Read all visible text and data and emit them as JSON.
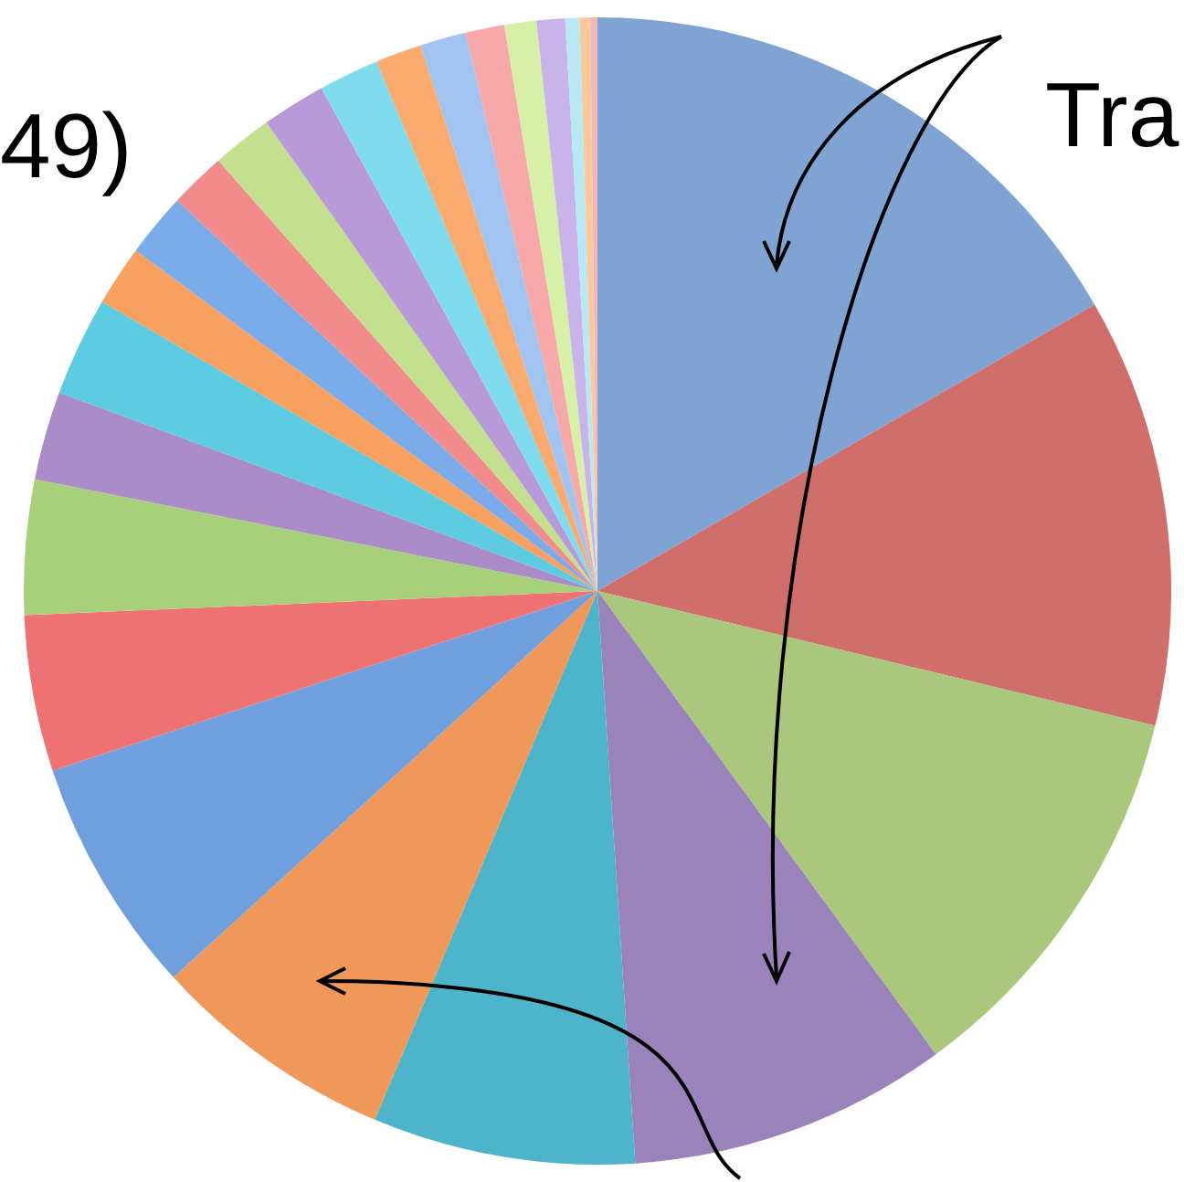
{
  "chart_data": {
    "type": "pie",
    "categories": [
      null,
      null,
      null,
      null,
      null,
      null,
      null,
      null,
      null,
      null,
      null,
      null,
      null,
      null,
      null,
      null,
      null,
      null,
      null,
      null,
      null,
      null,
      null,
      null,
      null
    ],
    "values": [
      16.7,
      12.1,
      11.2,
      9.0,
      7.4,
      6.9,
      6.7,
      4.4,
      3.8,
      2.5,
      2.8,
      1.7,
      1.8,
      1.6,
      1.7,
      1.8,
      1.7,
      1.3,
      1.3,
      1.1,
      0.9,
      0.8,
      0.4,
      0.3,
      0.2
    ],
    "colors": [
      "#7fa3d3",
      "#cf6e6b",
      "#a9c87c",
      "#9a82ba",
      "#4db4c9",
      "#f0985a",
      "#6f9fdc",
      "#ee7272",
      "#a8d07a",
      "#a98cc8",
      "#5dcbe0",
      "#f7a060",
      "#7aacea",
      "#f28b8b",
      "#c2e08e",
      "#b99ad8",
      "#7fdcef",
      "#fbab70",
      "#a2c4f0",
      "#f7a9a9",
      "#d6f0a8",
      "#c8b4ea",
      "#b8e8f4",
      "#fcc89c",
      "#f0b8b8"
    ],
    "annotations": [
      "49)",
      "Tra"
    ],
    "legend": false
  }
}
